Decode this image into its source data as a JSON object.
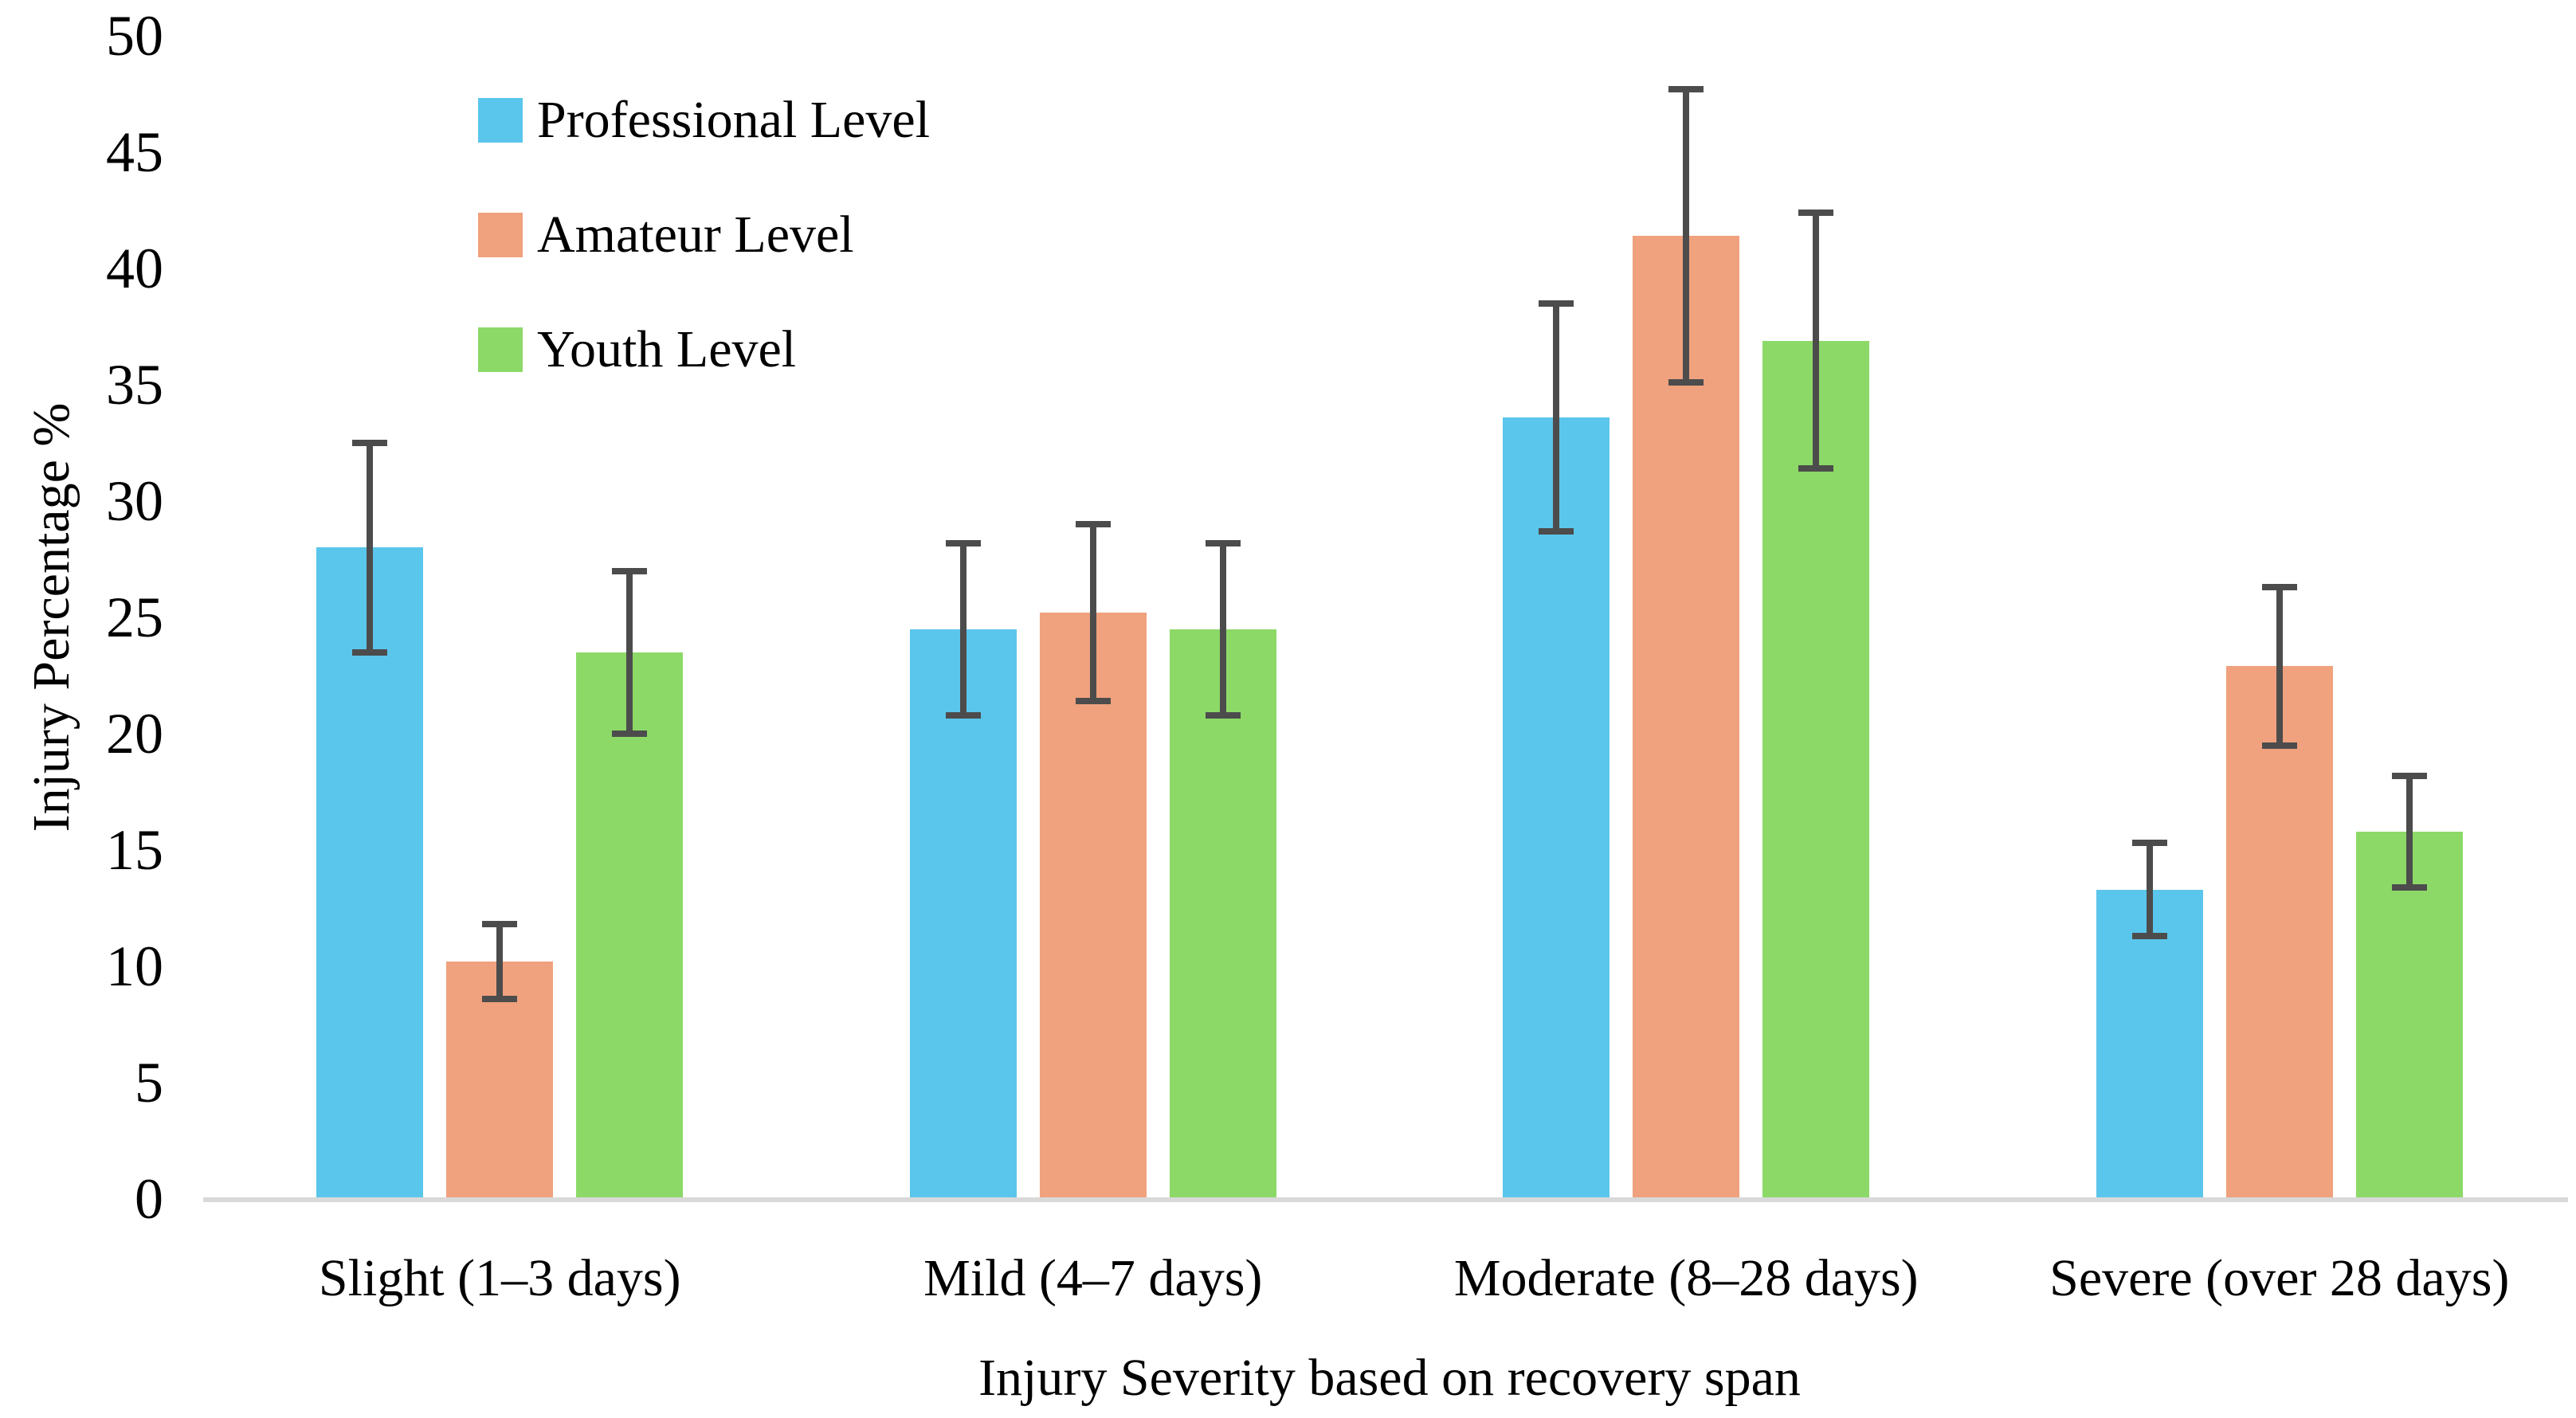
{
  "chart_data": {
    "type": "bar",
    "title": "",
    "xlabel": "Injury Severity based on recovery span",
    "ylabel": "Injury Percentage %",
    "ylim": [
      0,
      50
    ],
    "ytick_step": 5,
    "yticks": [
      0,
      5,
      10,
      15,
      20,
      25,
      30,
      35,
      40,
      45,
      50
    ],
    "grid": false,
    "legend_position": "upper-left-inside",
    "error_bars": true,
    "categories": [
      "Slight (1–3 days)",
      "Mild (4–7 days)",
      "Moderate (8–28 days)",
      "Severe (over 28 days)"
    ],
    "series": [
      {
        "name": "Professional Level",
        "color": "#5bc6ec",
        "values": [
          28.0,
          24.5,
          33.6,
          13.3
        ],
        "errors": [
          4.5,
          3.7,
          4.9,
          2.0
        ]
      },
      {
        "name": "Amateur Level",
        "color": "#f0a17d",
        "values": [
          10.2,
          25.2,
          41.4,
          22.9
        ],
        "errors": [
          1.6,
          3.8,
          6.3,
          3.4
        ]
      },
      {
        "name": "Youth Level",
        "color": "#8cd968",
        "values": [
          23.5,
          24.5,
          36.9,
          15.8
        ],
        "errors": [
          3.5,
          3.7,
          5.5,
          2.4
        ]
      }
    ],
    "error_bar_color": "#4c4c4c",
    "axis_line_color": "#d9d9d9"
  }
}
